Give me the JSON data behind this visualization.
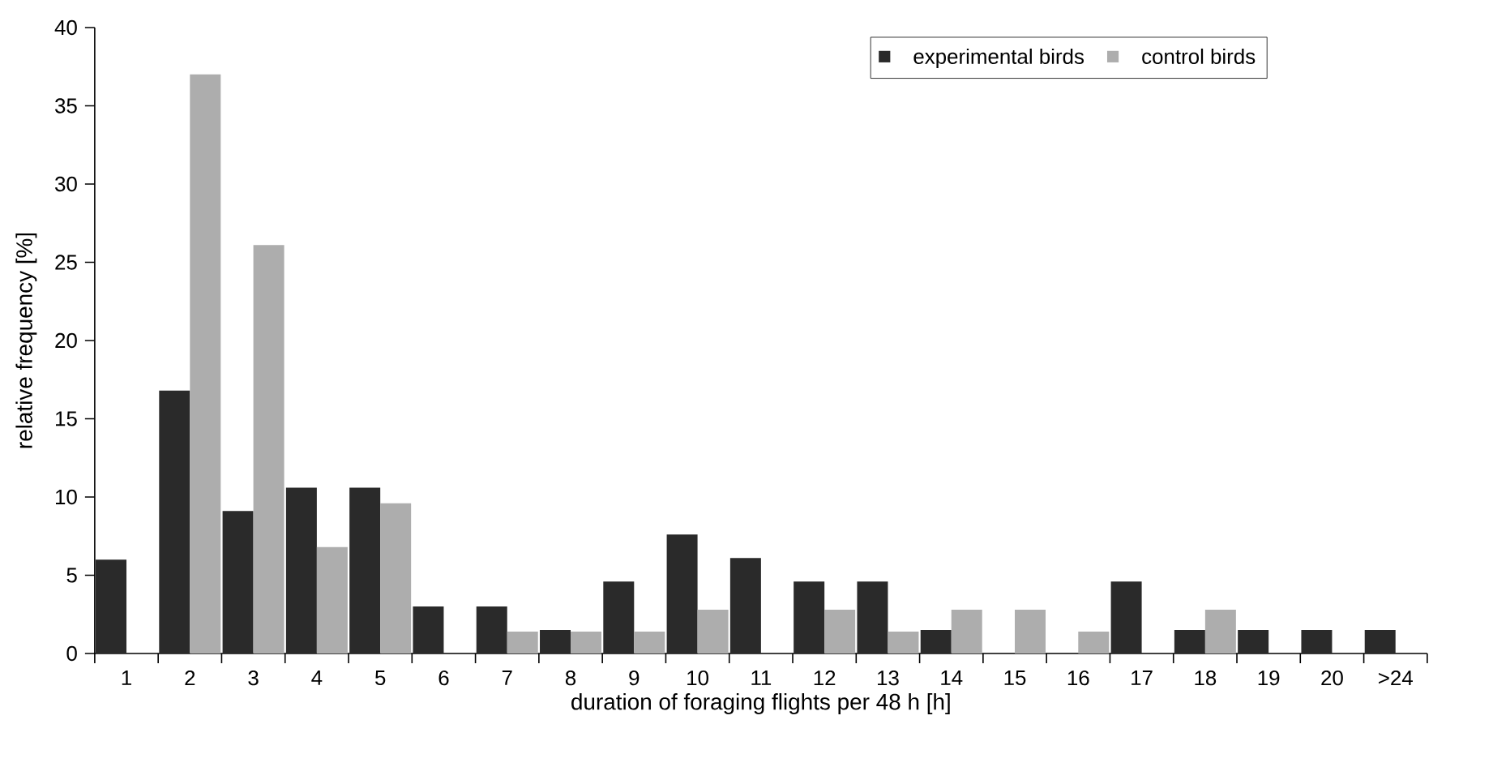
{
  "chart_data": {
    "type": "bar",
    "xlabel": "duration of foraging flights per 48 h [h]",
    "ylabel": "relative frequency [%]",
    "categories": [
      "1",
      "2",
      "3",
      "4",
      "5",
      "6",
      "7",
      "8",
      "9",
      "10",
      "11",
      "12",
      "13",
      "14",
      "15",
      "16",
      "17",
      "18",
      "19",
      "20",
      ">24"
    ],
    "series": [
      {
        "name": "experimental birds",
        "color": "#2a2a2a",
        "values": [
          6.0,
          16.8,
          9.1,
          10.6,
          10.6,
          3.0,
          3.0,
          1.5,
          4.6,
          7.6,
          6.1,
          4.6,
          4.6,
          1.5,
          0,
          0,
          4.6,
          1.5,
          1.5,
          1.5,
          1.5
        ]
      },
      {
        "name": "control birds",
        "color": "#adadad",
        "values": [
          0,
          37.0,
          26.1,
          6.8,
          9.6,
          0,
          1.4,
          1.4,
          1.4,
          2.8,
          0,
          2.8,
          1.4,
          2.8,
          2.8,
          1.4,
          0,
          2.8,
          0,
          0,
          0
        ]
      }
    ],
    "ylim": [
      0,
      40
    ],
    "yticks": [
      0,
      5,
      10,
      15,
      20,
      25,
      30,
      35,
      40
    ],
    "grid": false,
    "legend": "top right"
  }
}
